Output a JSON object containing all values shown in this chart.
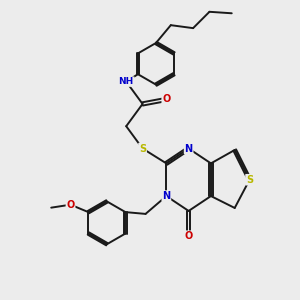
{
  "bg_color": "#ececec",
  "bond_color": "#1a1a1a",
  "bond_width": 1.4,
  "atom_colors": {
    "N": "#0000cc",
    "O": "#cc0000",
    "S": "#b8b800",
    "H": "#4a9090",
    "C": "#1a1a1a"
  },
  "font_size": 7.0,
  "dbo": 0.055
}
